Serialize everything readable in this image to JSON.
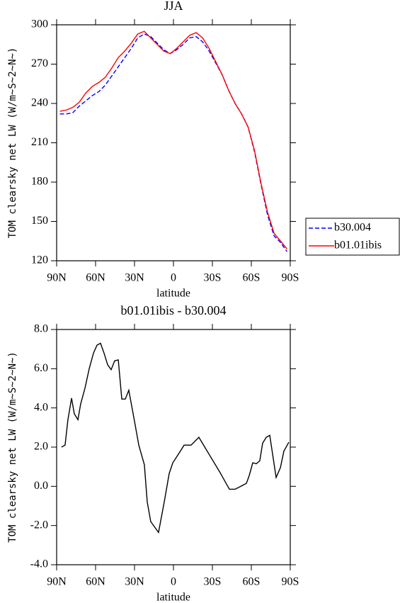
{
  "chart_data": [
    {
      "type": "line",
      "title": "JJA",
      "xlabel": "latitude",
      "ylabel": "TOM clearsky net LW (W/m~S~2~N~)",
      "x": [
        87.5,
        82.5,
        77.5,
        72.5,
        67.5,
        62.5,
        57.5,
        52.5,
        47.5,
        42.5,
        37.5,
        32.5,
        27.5,
        22.5,
        17.5,
        12.5,
        7.5,
        2.5,
        -2.5,
        -7.5,
        -12.5,
        -17.5,
        -22.5,
        -27.5,
        -32.5,
        -37.5,
        -42.5,
        -47.5,
        -52.5,
        -57.5,
        -62.5,
        -67.5,
        -72.5,
        -77.5,
        -82.5,
        -87.5
      ],
      "series": [
        {
          "name": "b30.004",
          "color": "#0000ff",
          "style": "dashed",
          "values": [
            232,
            232,
            233,
            238,
            242,
            246,
            249,
            254,
            261,
            268,
            275,
            282,
            290,
            293,
            291,
            286,
            281,
            278,
            281,
            285,
            290,
            291,
            287,
            280,
            271,
            262,
            250,
            240,
            232,
            222,
            203,
            178,
            155,
            139,
            134,
            127
          ]
        },
        {
          "name": "b01.01ibis",
          "color": "#ff0000",
          "style": "solid",
          "values": [
            234,
            235,
            237,
            241,
            248,
            253,
            256,
            260,
            267,
            275,
            280,
            286,
            293,
            295,
            290,
            285,
            280,
            278,
            282,
            287,
            292,
            294,
            290,
            282,
            272,
            262,
            250,
            240,
            232,
            222,
            204,
            179,
            157,
            141,
            135,
            129
          ]
        }
      ],
      "xlim": [
        90,
        -90
      ],
      "xticks": [
        {
          "value": 90,
          "label": "90N"
        },
        {
          "value": 60,
          "label": "60N"
        },
        {
          "value": 30,
          "label": "30N"
        },
        0,
        {
          "value": -30,
          "label": "30S"
        },
        {
          "value": -60,
          "label": "60S"
        },
        {
          "value": -90,
          "label": "90S"
        }
      ],
      "ylim": [
        120,
        300
      ],
      "yticks": [
        120,
        150,
        180,
        210,
        240,
        270,
        300
      ],
      "legend": "right"
    },
    {
      "type": "line",
      "title": "b01.01ibis - b30.004",
      "xlabel": "latitude",
      "ylabel": "TOM clearsky net LW (W/m~S~2~N~)",
      "x": [
        86.2,
        83.5,
        81.3,
        78.5,
        76.4,
        73.6,
        71.5,
        68.2,
        64.9,
        61.6,
        58.9,
        56.2,
        53.5,
        50.7,
        48,
        45.3,
        42.5,
        39.8,
        37.1,
        34.4,
        30.5,
        26.7,
        22.4,
        20.2,
        17.5,
        11.5,
        7.1,
        3.3,
        0.5,
        -4.9,
        -8.2,
        -13.6,
        -19.6,
        -27.3,
        -35.5,
        -43.1,
        -47.5,
        -51.8,
        -56.2,
        -58.4,
        -61.1,
        -63.8,
        -66.5,
        -68.7,
        -71.5,
        -74.2,
        -79.1,
        -82.4,
        -85.1,
        -88.9
      ],
      "series": [
        {
          "name": "b01.01ibis - b30.004",
          "color": "#000000",
          "style": "solid",
          "values": [
            2.0,
            2.1,
            3.4,
            4.5,
            3.7,
            3.4,
            4.2,
            5.0,
            6.0,
            6.8,
            7.2,
            7.3,
            6.8,
            6.2,
            5.95,
            6.4,
            6.45,
            4.45,
            4.45,
            4.9,
            3.5,
            2.1,
            1.1,
            -0.8,
            -1.8,
            -2.35,
            -0.8,
            0.65,
            1.2,
            1.75,
            2.1,
            2.1,
            2.5,
            1.65,
            0.75,
            -0.15,
            -0.15,
            0,
            0.15,
            0.55,
            1.2,
            1.15,
            1.3,
            2.2,
            2.5,
            2.6,
            0.45,
            0.95,
            1.8,
            2.25
          ]
        }
      ],
      "xlim": [
        90,
        -90
      ],
      "xticks": [
        {
          "value": 90,
          "label": "90N"
        },
        {
          "value": 60,
          "label": "60N"
        },
        {
          "value": 30,
          "label": "30N"
        },
        0,
        {
          "value": -30,
          "label": "30S"
        },
        {
          "value": -60,
          "label": "60S"
        },
        {
          "value": -90,
          "label": "90S"
        }
      ],
      "ylim": [
        -4,
        8
      ],
      "yticks": [
        {
          "value": -4,
          "label": "-4.0"
        },
        {
          "value": -2,
          "label": "-2.0"
        },
        {
          "value": 0,
          "label": "0.0"
        },
        {
          "value": 2,
          "label": "2.0"
        },
        {
          "value": 4,
          "label": "4.0"
        },
        {
          "value": 6,
          "label": "6.0"
        },
        {
          "value": 8,
          "label": "8.0"
        }
      ]
    }
  ]
}
